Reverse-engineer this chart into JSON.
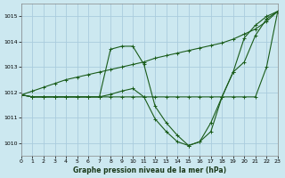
{
  "title": "Graphe pression niveau de la mer (hPa)",
  "bg_color": "#cce8f0",
  "grid_color": "#aaccdd",
  "line_color": "#1a5c1a",
  "xlim": [
    0,
    23
  ],
  "ylim": [
    1009.5,
    1015.5
  ],
  "xticks": [
    0,
    1,
    2,
    3,
    4,
    5,
    6,
    7,
    8,
    9,
    10,
    11,
    12,
    13,
    14,
    15,
    16,
    17,
    18,
    19,
    20,
    21,
    22,
    23
  ],
  "yticks": [
    1010,
    1011,
    1012,
    1013,
    1014,
    1015
  ],
  "s1": [
    1011.9,
    1012.05,
    1012.2,
    1012.35,
    1012.5,
    1012.6,
    1012.7,
    1012.8,
    1012.9,
    1013.0,
    1013.1,
    1013.2,
    1013.35,
    1013.45,
    1013.55,
    1013.65,
    1013.75,
    1013.85,
    1013.95,
    1014.1,
    1014.3,
    1014.5,
    1014.8,
    1015.2
  ],
  "s2": [
    1011.9,
    1011.82,
    1011.82,
    1011.82,
    1011.82,
    1011.82,
    1011.82,
    1011.82,
    1013.7,
    1013.82,
    1013.82,
    1013.1,
    1011.45,
    1010.8,
    1010.3,
    1009.9,
    1010.05,
    1010.8,
    1011.82,
    1012.8,
    1014.15,
    1014.65,
    1015.0,
    1015.2
  ],
  "s3": [
    1011.9,
    1011.82,
    1011.82,
    1011.82,
    1011.82,
    1011.82,
    1011.82,
    1011.82,
    1011.92,
    1012.05,
    1012.15,
    1011.82,
    1010.95,
    1010.45,
    1010.05,
    1009.9,
    1010.05,
    1010.45,
    1011.82,
    1012.8,
    1013.2,
    1014.25,
    1014.9,
    1015.2
  ],
  "s4": [
    1011.9,
    1011.82,
    1011.82,
    1011.82,
    1011.82,
    1011.82,
    1011.82,
    1011.82,
    1011.82,
    1011.82,
    1011.82,
    1011.82,
    1011.82,
    1011.82,
    1011.82,
    1011.82,
    1011.82,
    1011.82,
    1011.82,
    1011.82,
    1011.82,
    1011.82,
    1013.0,
    1015.2
  ]
}
